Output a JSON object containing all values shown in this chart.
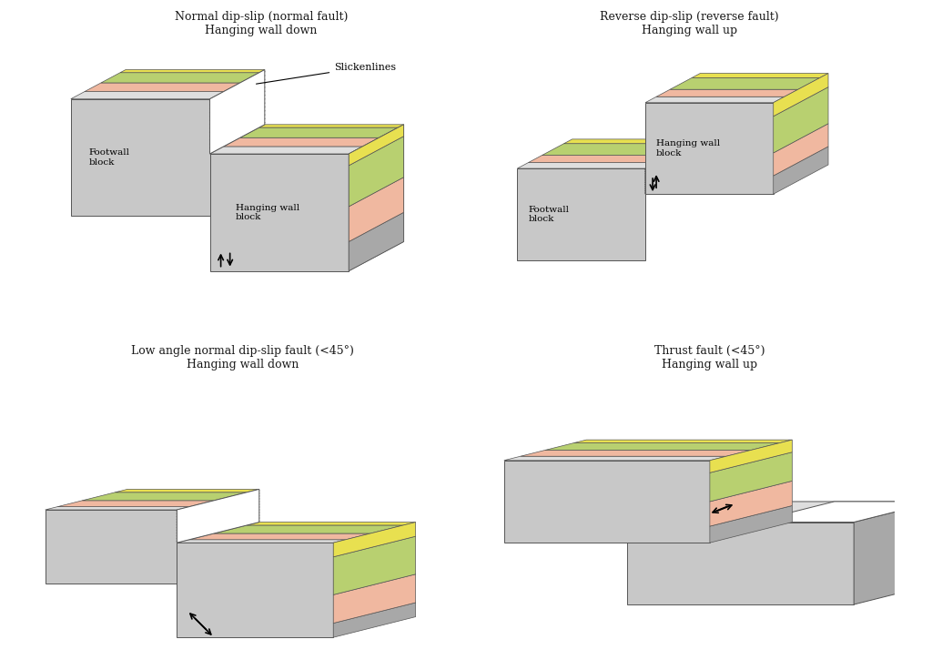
{
  "bg_color": "#ffffff",
  "title1": "Normal dip-slip (normal fault)\nHanging wall down",
  "title2": "Reverse dip-slip (reverse fault)\nHanging wall up",
  "title3": "Low angle normal dip-slip fault (<45°)\nHanging wall down",
  "title4": "Thrust fault (<45°)\nHanging wall up",
  "gray": "#c8c8c8",
  "gray_dark": "#b0b0b0",
  "gray_light": "#d8d8d8",
  "pink": "#f0b8a0",
  "green": "#b8d070",
  "yellow": "#e8e050",
  "fault_white": "#ffffff",
  "text_color": "#1a1a1a",
  "line_color": "#1a1a1a"
}
